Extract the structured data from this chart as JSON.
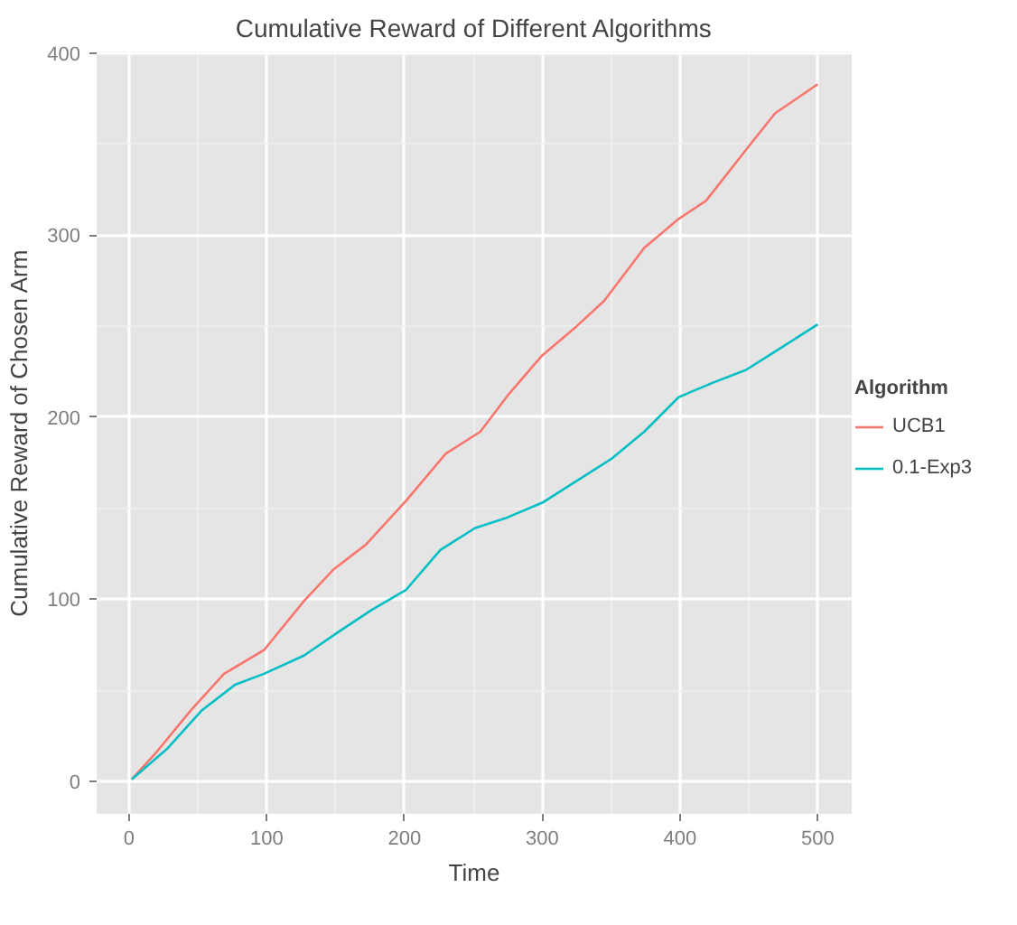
{
  "chart_data": {
    "type": "line",
    "title": "Cumulative Reward of Different Algorithms",
    "xlabel": "Time",
    "ylabel": "Cumulative Reward of Chosen Arm",
    "legend_title": "Algorithm",
    "legend": "right",
    "grid": true,
    "xlim": [
      -23.5,
      524.7
    ],
    "ylim": [
      -18,
      401
    ],
    "xticks": [
      0,
      100,
      200,
      300,
      400,
      500
    ],
    "yticks": [
      0,
      100,
      200,
      300,
      400
    ],
    "series": [
      {
        "name": "UCB1",
        "color": "#f8766d",
        "x": [
          2,
          20,
          45,
          69,
          98,
          127,
          148,
          172,
          201,
          230,
          255,
          275,
          300,
          325,
          345,
          374,
          399,
          419,
          448,
          469,
          500
        ],
        "values": [
          1,
          16,
          39,
          59,
          72,
          99,
          116,
          130,
          154,
          180,
          192,
          212,
          234,
          250,
          264,
          293,
          309,
          319,
          347,
          367,
          383
        ]
      },
      {
        "name": "0.1-Exp3",
        "color": "#00bfc4",
        "x": [
          2,
          28,
          53,
          77,
          98,
          127,
          152,
          176,
          201,
          226,
          251,
          275,
          300,
          325,
          350,
          374,
          399,
          424,
          448,
          473,
          500
        ],
        "values": [
          1,
          18,
          39,
          53,
          59,
          69,
          82,
          94,
          105,
          127,
          139,
          145,
          153,
          165,
          177,
          192,
          211,
          219,
          226,
          238,
          251
        ]
      }
    ]
  }
}
